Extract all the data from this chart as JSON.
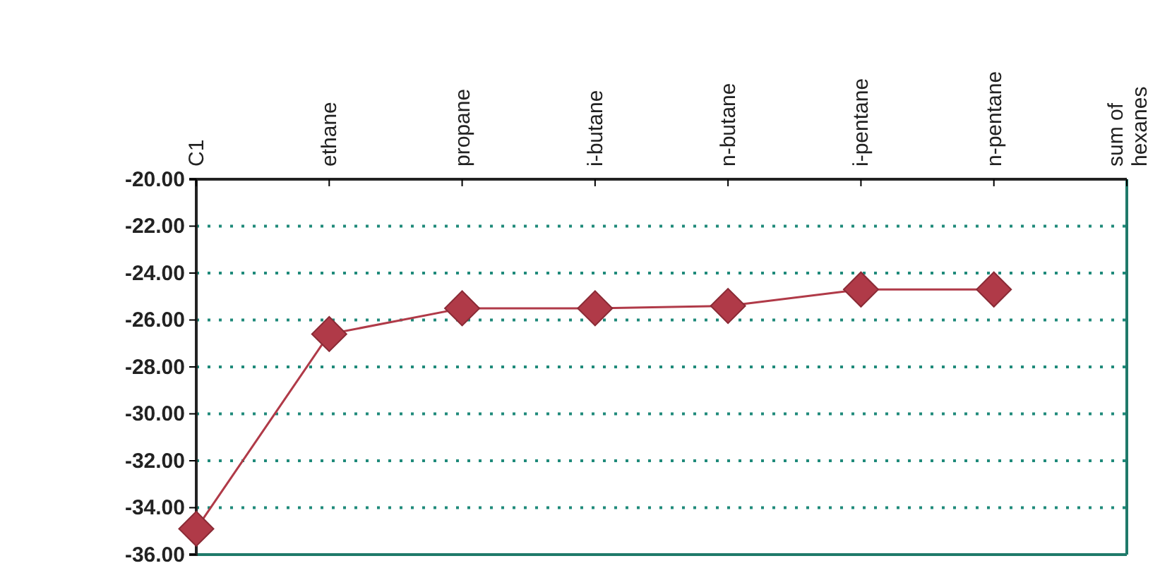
{
  "chart_data": {
    "type": "line",
    "categories": [
      "C1",
      "ethane",
      "propane",
      "i-butane",
      "n-butane",
      "i-pentane",
      "n-pentane",
      "sum of hexanes"
    ],
    "series": [
      {
        "color": "#b03a48",
        "values": [
          -34.9,
          -26.6,
          -25.5,
          -25.5,
          -25.4,
          -24.7,
          -24.7,
          null
        ]
      }
    ],
    "ylim": [
      -36,
      -20
    ],
    "yticks": [
      {
        "value": -36,
        "label": "-36.00"
      },
      {
        "value": -34,
        "label": "-34.00"
      },
      {
        "value": -32,
        "label": "-32.00"
      },
      {
        "value": -30,
        "label": "-30.00"
      },
      {
        "value": -28,
        "label": "-28.00"
      },
      {
        "value": -26,
        "label": "-26.00"
      },
      {
        "value": -24,
        "label": "-24.00"
      },
      {
        "value": -22,
        "label": "-22.00"
      },
      {
        "value": -20,
        "label": "-20.00"
      }
    ],
    "grid": "y",
    "marker": "diamond",
    "line_style": "solid"
  }
}
